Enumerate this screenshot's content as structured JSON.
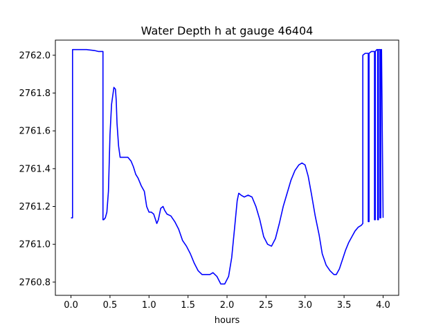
{
  "chart_data": {
    "type": "line",
    "title": "Water Depth h at gauge 46404",
    "xlabel": "hours",
    "ylabel": "",
    "xlim": [
      -0.2,
      4.2
    ],
    "ylim": [
      2760.73,
      2762.08
    ],
    "xticks": [
      0.0,
      0.5,
      1.0,
      1.5,
      2.0,
      2.5,
      3.0,
      3.5,
      4.0
    ],
    "xtick_labels": [
      "0.0",
      "0.5",
      "1.0",
      "1.5",
      "2.0",
      "2.5",
      "3.0",
      "3.5",
      "4.0"
    ],
    "yticks": [
      2760.8,
      2761.0,
      2761.2,
      2761.4,
      2761.6,
      2761.8,
      2762.0
    ],
    "ytick_labels": [
      "2760.8",
      "2761.0",
      "2761.2",
      "2761.4",
      "2761.6",
      "2761.8",
      "2762.0"
    ],
    "grid": false,
    "series": [
      {
        "color": "#0000ff",
        "x": [
          0.0,
          0.02,
          0.02,
          0.03,
          0.1,
          0.2,
          0.3,
          0.35,
          0.41,
          0.41,
          0.42,
          0.44,
          0.46,
          0.48,
          0.5,
          0.52,
          0.55,
          0.57,
          0.58,
          0.59,
          0.61,
          0.63,
          0.65,
          0.68,
          0.7,
          0.73,
          0.77,
          0.8,
          0.83,
          0.86,
          0.9,
          0.94,
          0.97,
          1.0,
          1.03,
          1.06,
          1.1,
          1.12,
          1.15,
          1.18,
          1.2,
          1.23,
          1.28,
          1.33,
          1.38,
          1.43,
          1.48,
          1.53,
          1.58,
          1.63,
          1.68,
          1.73,
          1.78,
          1.82,
          1.87,
          1.92,
          1.97,
          2.02,
          2.06,
          2.1,
          2.13,
          2.15,
          2.18,
          2.22,
          2.27,
          2.32,
          2.37,
          2.42,
          2.47,
          2.52,
          2.57,
          2.62,
          2.67,
          2.72,
          2.77,
          2.82,
          2.87,
          2.92,
          2.96,
          3.0,
          3.04,
          3.08,
          3.13,
          3.18,
          3.22,
          3.27,
          3.32,
          3.37,
          3.4,
          3.44,
          3.48,
          3.52,
          3.56,
          3.6,
          3.64,
          3.68,
          3.72,
          3.74,
          3.74,
          3.77,
          3.8,
          3.81,
          3.81,
          3.82,
          3.82,
          3.85,
          3.88,
          3.89,
          3.89,
          3.9,
          3.9,
          3.92,
          3.93,
          3.93,
          3.94,
          3.94,
          3.96,
          3.96,
          3.97,
          3.97,
          3.98,
          4.0
        ],
        "y": [
          2761.14,
          2761.14,
          2762.03,
          2762.03,
          2762.03,
          2762.03,
          2762.025,
          2762.02,
          2762.02,
          2761.13,
          2761.13,
          2761.14,
          2761.17,
          2761.28,
          2761.58,
          2761.74,
          2761.83,
          2761.82,
          2761.76,
          2761.64,
          2761.52,
          2761.46,
          2761.46,
          2761.46,
          2761.46,
          2761.46,
          2761.44,
          2761.41,
          2761.37,
          2761.35,
          2761.31,
          2761.28,
          2761.2,
          2761.17,
          2761.17,
          2761.16,
          2761.11,
          2761.13,
          2761.19,
          2761.2,
          2761.18,
          2761.16,
          2761.15,
          2761.12,
          2761.08,
          2761.02,
          2760.99,
          2760.95,
          2760.9,
          2760.86,
          2760.84,
          2760.84,
          2760.84,
          2760.85,
          2760.83,
          2760.79,
          2760.79,
          2760.83,
          2760.93,
          2761.1,
          2761.23,
          2761.27,
          2761.26,
          2761.25,
          2761.26,
          2761.25,
          2761.2,
          2761.13,
          2761.04,
          2761.0,
          2760.99,
          2761.03,
          2761.11,
          2761.2,
          2761.27,
          2761.34,
          2761.39,
          2761.42,
          2761.43,
          2761.42,
          2761.36,
          2761.27,
          2761.15,
          2761.05,
          2760.95,
          2760.89,
          2760.86,
          2760.84,
          2760.84,
          2760.87,
          2760.92,
          2760.97,
          2761.01,
          2761.04,
          2761.07,
          2761.09,
          2761.1,
          2761.11,
          2762.0,
          2762.01,
          2762.01,
          2762.01,
          2761.12,
          2761.12,
          2762.01,
          2762.02,
          2762.02,
          2762.02,
          2761.13,
          2761.13,
          2762.02,
          2762.03,
          2762.03,
          2761.13,
          2761.13,
          2762.03,
          2762.03,
          2761.14,
          2761.14,
          2762.03,
          2762.03,
          2761.14
        ]
      }
    ]
  }
}
